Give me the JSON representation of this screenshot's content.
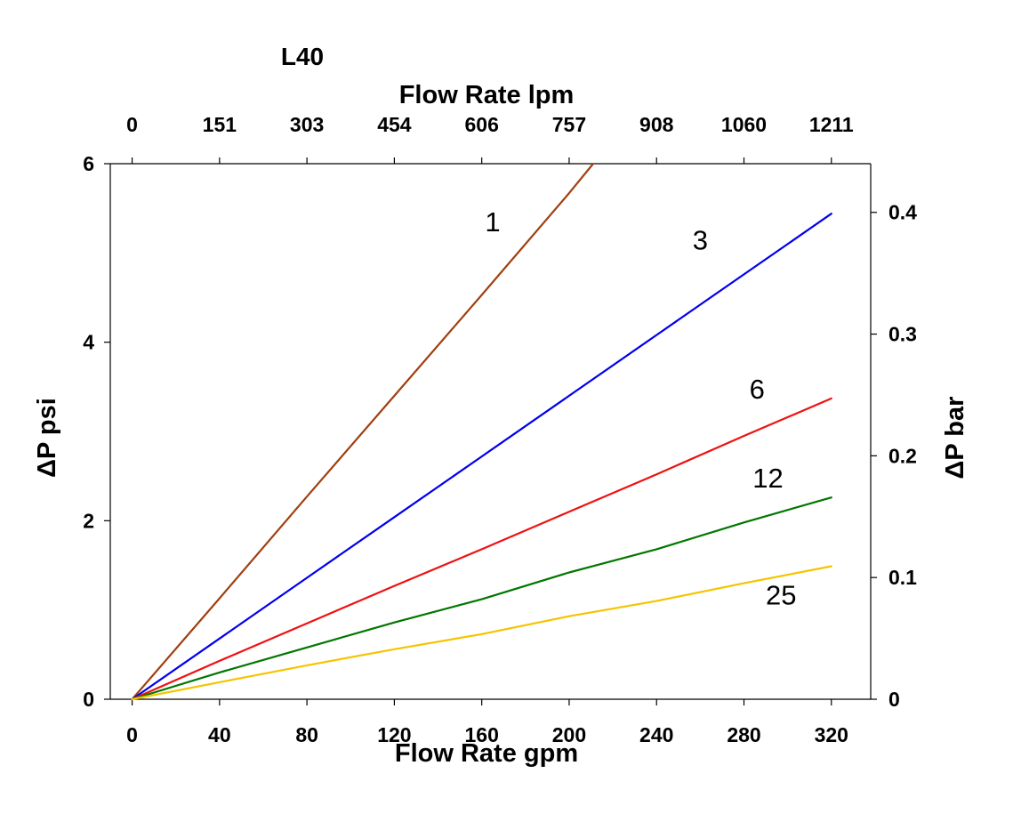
{
  "chart_data": {
    "type": "line",
    "title": "L40",
    "xlabel": "Flow Rate gpm",
    "x2label": "Flow Rate lpm",
    "ylabel": "ΔP psi",
    "y2label": "ΔP bar",
    "xlim": [
      -10,
      338
    ],
    "ylim": [
      0,
      6
    ],
    "y2lim": [
      0,
      0.44
    ],
    "grid": false,
    "x_ticks": [
      0,
      40,
      80,
      120,
      160,
      200,
      240,
      280,
      320
    ],
    "x_tick_labels": [
      "0",
      "40",
      "80",
      "120",
      "160",
      "200",
      "240",
      "280",
      "320"
    ],
    "x2_ticks": [
      0,
      40,
      80,
      120,
      160,
      200,
      240,
      280,
      320
    ],
    "x2_tick_labels": [
      "0",
      "151",
      "303",
      "454",
      "606",
      "757",
      "908",
      "1060",
      "1211"
    ],
    "y_ticks": [
      0,
      2,
      4,
      6
    ],
    "y_tick_labels": [
      "0",
      "2",
      "4",
      "6"
    ],
    "y2_ticks": [
      0,
      0.1,
      0.2,
      0.3,
      0.4
    ],
    "y2_tick_labels": [
      "0",
      "0.1",
      "0.2",
      "0.3",
      "0.4"
    ],
    "series": [
      {
        "name": "1",
        "color": "#a0400f",
        "x": [
          0,
          40,
          80,
          120,
          160,
          200,
          211
        ],
        "y": [
          0,
          1.13,
          2.27,
          3.4,
          4.53,
          5.67,
          6.0
        ],
        "label_pos": [
          165,
          5.35
        ]
      },
      {
        "name": "3",
        "color": "#0000ee",
        "x": [
          0,
          40,
          80,
          120,
          160,
          200,
          240,
          280,
          320
        ],
        "y": [
          0,
          0.68,
          1.36,
          2.04,
          2.72,
          3.4,
          4.08,
          4.76,
          5.44
        ],
        "label_pos": [
          260,
          5.15
        ]
      },
      {
        "name": "6",
        "color": "#ee1111",
        "x": [
          0,
          40,
          80,
          120,
          160,
          200,
          240,
          280,
          320
        ],
        "y": [
          0,
          0.43,
          0.85,
          1.27,
          1.68,
          2.1,
          2.52,
          2.95,
          3.37
        ],
        "label_pos": [
          286,
          3.48
        ]
      },
      {
        "name": "12",
        "color": "#007700",
        "x": [
          0,
          40,
          80,
          120,
          160,
          200,
          240,
          280,
          320
        ],
        "y": [
          0,
          0.3,
          0.58,
          0.86,
          1.12,
          1.42,
          1.68,
          1.98,
          2.26
        ],
        "label_pos": [
          291,
          2.48
        ]
      },
      {
        "name": "25",
        "color": "#f5c400",
        "x": [
          0,
          40,
          80,
          120,
          160,
          200,
          240,
          280,
          320
        ],
        "y": [
          0,
          0.19,
          0.38,
          0.56,
          0.73,
          0.93,
          1.1,
          1.3,
          1.49
        ],
        "label_pos": [
          297,
          1.17
        ]
      }
    ]
  }
}
